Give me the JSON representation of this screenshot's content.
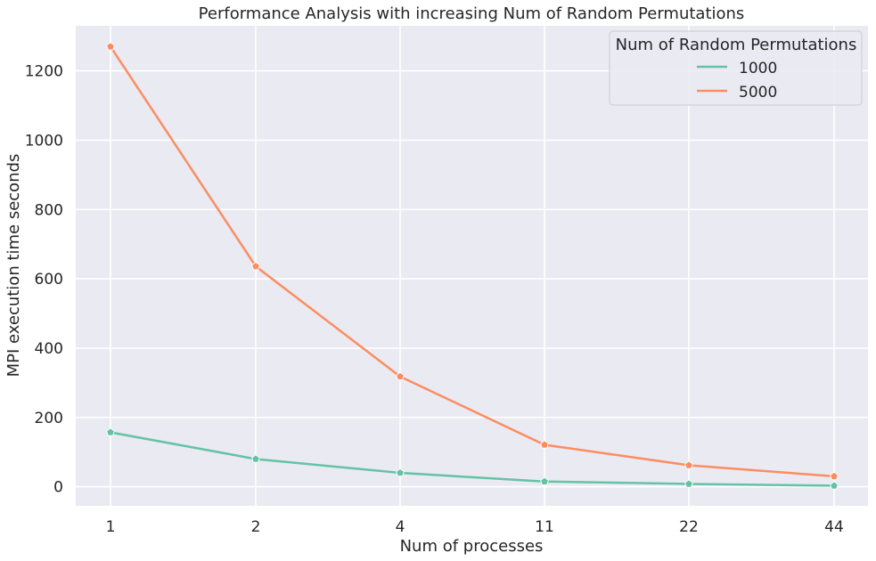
{
  "chart_data": {
    "type": "line",
    "title": "Performance Analysis with increasing Num of Random Permutations",
    "xlabel": "Num of processes",
    "ylabel": "MPI execution time seconds",
    "x_scale": "categorical",
    "categories": [
      "1",
      "2",
      "4",
      "11",
      "22",
      "44"
    ],
    "ylim": [
      -55,
      1330
    ],
    "yticks": [
      0,
      200,
      400,
      600,
      800,
      1000,
      1200
    ],
    "grid": true,
    "legend": {
      "title": "Num of Random Permutations",
      "placement": "top-right"
    },
    "series": [
      {
        "name": "1000",
        "color": "#66c2a5",
        "values": [
          157,
          80,
          40,
          15,
          8,
          3
        ]
      },
      {
        "name": "5000",
        "color": "#fc8d62",
        "values": [
          1270,
          636,
          318,
          121,
          62,
          30
        ]
      }
    ]
  },
  "colors": {
    "plot_background": "#eaeaf2",
    "grid": "#ffffff",
    "text": "#262626"
  }
}
